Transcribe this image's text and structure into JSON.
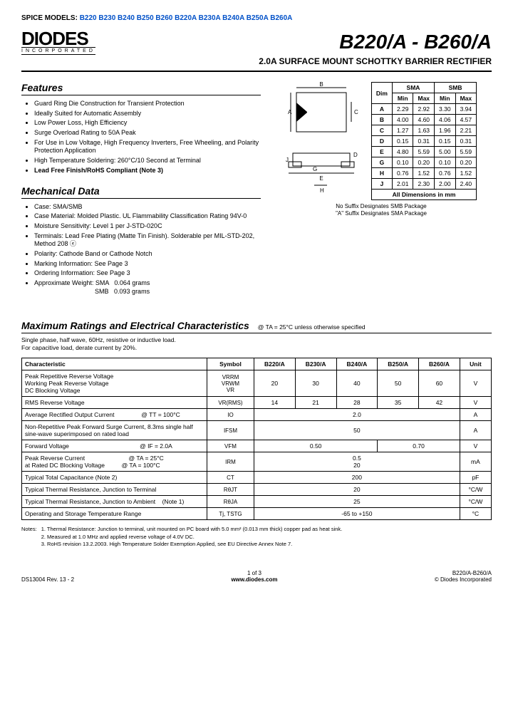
{
  "spice": {
    "label": "SPICE MODELS:",
    "models": [
      "B220",
      "B230",
      "B240",
      "B250",
      "B260",
      "B220A",
      "B230A",
      "B240A",
      "B250A",
      "B260A"
    ]
  },
  "logo": {
    "name": "DIODES",
    "sub": "INCORPORATED"
  },
  "title": {
    "part": "B220/A - B260/A",
    "sub": "2.0A SURFACE MOUNT SCHOTTKY BARRIER RECTIFIER"
  },
  "features": {
    "heading": "Features",
    "items": [
      "Guard Ring Die Construction for Transient Protection",
      "Ideally Suited for Automatic Assembly",
      "Low Power Loss, High Efficiency",
      "Surge Overload Rating to 50A Peak",
      "For Use in Low Voltage, High Frequency Inverters, Free Wheeling, and Polarity Protection Application",
      "High Temperature Soldering: 260°C/10 Second at Terminal"
    ],
    "bold_item": "Lead Free Finish/RoHS Compliant (Note 3)"
  },
  "mech": {
    "heading": "Mechanical Data",
    "items": [
      "Case: SMA/SMB",
      "Case Material: Molded Plastic. UL Flammability Classification Rating 94V-0",
      "Moisture Sensitivity: Level 1 per J-STD-020C",
      "Terminals: Lead Free Plating (Matte Tin Finish). Solderable per MIL-STD-202, Method 208 ⓔ",
      "Polarity: Cathode Band or Cathode Notch",
      "Marking Information: See Page 3",
      "Ordering Information: See Page 3",
      "Approximate Weight: SMA   0.064 grams\n                                  SMB   0.093 grams"
    ]
  },
  "dim": {
    "hdr_dim": "Dim",
    "hdr_sma": "SMA",
    "hdr_smb": "SMB",
    "min": "Min",
    "max": "Max",
    "rows": [
      {
        "d": "A",
        "a": "2.29",
        "b": "2.92",
        "c": "3.30",
        "e": "3.94"
      },
      {
        "d": "B",
        "a": "4.00",
        "b": "4.60",
        "c": "4.06",
        "e": "4.57"
      },
      {
        "d": "C",
        "a": "1.27",
        "b": "1.63",
        "c": "1.96",
        "e": "2.21"
      },
      {
        "d": "D",
        "a": "0.15",
        "b": "0.31",
        "c": "0.15",
        "e": "0.31"
      },
      {
        "d": "E",
        "a": "4.80",
        "b": "5.59",
        "c": "5.00",
        "e": "5.59"
      },
      {
        "d": "G",
        "a": "0.10",
        "b": "0.20",
        "c": "0.10",
        "e": "0.20"
      },
      {
        "d": "H",
        "a": "0.76",
        "b": "1.52",
        "c": "0.76",
        "e": "1.52"
      },
      {
        "d": "J",
        "a": "2.01",
        "b": "2.30",
        "c": "2.00",
        "e": "2.40"
      }
    ],
    "foot": "All Dimensions in mm",
    "note1": "No Suffix Designates SMB Package",
    "note2": "\"A\" Suffix Designates SMA Package"
  },
  "maxrat": {
    "heading": "Maximum Ratings and Electrical Characteristics",
    "cond": "@ TA = 25°C unless otherwise specified",
    "sub": "Single phase, half wave, 60Hz, resistive or inductive load.\nFor capacitive load, derate current by 20%.",
    "hdr": {
      "char": "Characteristic",
      "sym": "Symbol",
      "p1": "B220/A",
      "p2": "B230/A",
      "p3": "B240/A",
      "p4": "B250/A",
      "p5": "B260/A",
      "unit": "Unit"
    },
    "rows": [
      {
        "c": "Peak Repetitive Reverse Voltage\nWorking Peak Reverse Voltage\nDC Blocking Voltage",
        "s": "VRRM\nVRWM\nVR",
        "v": [
          "20",
          "30",
          "40",
          "50",
          "60"
        ],
        "u": "V"
      },
      {
        "c": "RMS Reverse Voltage",
        "s": "VR(RMS)",
        "v": [
          "14",
          "21",
          "28",
          "35",
          "42"
        ],
        "u": "V"
      },
      {
        "c": "Average Rectified Output Current                @ TT = 100°C",
        "s": "IO",
        "span": "2.0",
        "u": "A"
      },
      {
        "c": "Non-Repetitive Peak Forward Surge Current, 8.3ms single half sine-wave superimposed on rated load",
        "s": "IFSM",
        "span": "50",
        "u": "A"
      },
      {
        "c": "Forward Voltage                                          @ IF = 2.0A",
        "s": "VFM",
        "v2": [
          "0.50",
          "0.70"
        ],
        "u": "V"
      },
      {
        "c": "Peak Reverse Current                          @ TA = 25°C\nat Rated DC Blocking Voltage          @ TA = 100°C",
        "s": "IRM",
        "span2": "0.5\n20",
        "u": "mA"
      },
      {
        "c": "Typical Total Capacitance (Note 2)",
        "s": "CT",
        "span": "200",
        "u": "pF"
      },
      {
        "c": "Typical Thermal Resistance, Junction to Terminal",
        "s": "RθJT",
        "span": "20",
        "u": "°C/W"
      },
      {
        "c": "Typical Thermal Resistance, Junction to Ambient    (Note 1)",
        "s": "RθJA",
        "span": "25",
        "u": "°C/W"
      },
      {
        "c": "Operating and Storage Temperature Range",
        "s": "Tj, TSTG",
        "span": "-65 to +150",
        "u": "°C"
      }
    ]
  },
  "notes": {
    "label": "Notes:",
    "items": [
      "1.   Thermal Resistance: Junction to terminal, unit mounted on PC board with 5.0 mm² (0.013 mm thick) copper pad as heat sink.",
      "2.   Measured at 1.0 MHz and applied reverse voltage of 4.0V DC.",
      "3.   RoHS revision 13.2.2003. High Temperature Solder Exemption Applied, see EU Directive Annex Note 7."
    ]
  },
  "footer": {
    "left": "DS13004 Rev. 13 - 2",
    "page": "1 of 3",
    "url": "www.diodes.com",
    "right1": "B220/A-B260/A",
    "right2": "© Diodes Incorporated"
  }
}
